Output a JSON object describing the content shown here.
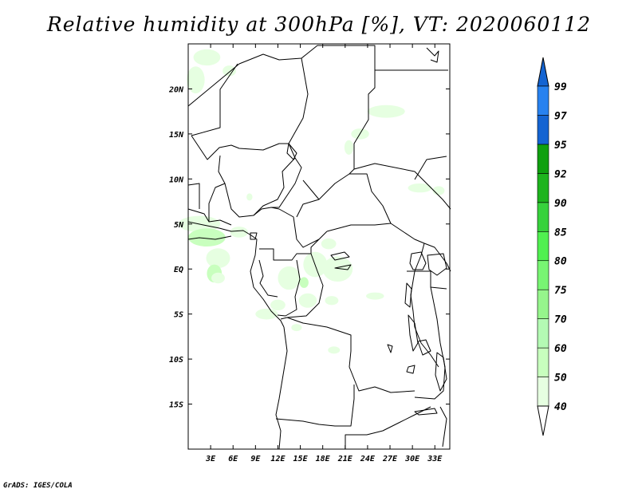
{
  "title": "Relative humidity at 300hPa [%], VT: 2020060112",
  "credit": "GrADS: IGES/COLA",
  "map": {
    "lon_range": [
      0,
      35
    ],
    "lat_range": [
      -20,
      25
    ],
    "lat_ticks": [
      {
        "value": 20,
        "label": "20N"
      },
      {
        "value": 15,
        "label": "15N"
      },
      {
        "value": 10,
        "label": "10N"
      },
      {
        "value": 5,
        "label": "5N"
      },
      {
        "value": 0,
        "label": "EQ"
      },
      {
        "value": -5,
        "label": "5S"
      },
      {
        "value": -10,
        "label": "10S"
      },
      {
        "value": -15,
        "label": "15S"
      }
    ],
    "lon_ticks": [
      {
        "value": 3,
        "label": "3E"
      },
      {
        "value": 6,
        "label": "6E"
      },
      {
        "value": 9,
        "label": "9E"
      },
      {
        "value": 12,
        "label": "12E"
      },
      {
        "value": 15,
        "label": "15E"
      },
      {
        "value": 18,
        "label": "18E"
      },
      {
        "value": 21,
        "label": "21E"
      },
      {
        "value": 24,
        "label": "24E"
      },
      {
        "value": 27,
        "label": "27E"
      },
      {
        "value": 30,
        "label": "30E"
      },
      {
        "value": 33,
        "label": "33E"
      }
    ]
  },
  "colorbar": {
    "levels": [
      "40",
      "50",
      "60",
      "70",
      "75",
      "80",
      "85",
      "90",
      "92",
      "95",
      "97",
      "99"
    ],
    "colors": [
      "#e6ffe1",
      "#c8ffbe",
      "#b4fab4",
      "#96f58c",
      "#78f573",
      "#50f050",
      "#37d23c",
      "#1eb41e",
      "#0fa00f",
      "#1464d2",
      "#2882f0",
      "#50a5f5",
      "#96d2fa"
    ],
    "low_color": "#ffffff",
    "high_color": "#1464d2"
  },
  "humidity_patches": [
    {
      "lon": 2.5,
      "lat": 23.5,
      "rx": 1.8,
      "ry": 0.9,
      "level": 0
    },
    {
      "lon": 1.0,
      "lat": 21.0,
      "rx": 1.2,
      "ry": 1.5,
      "level": 0
    },
    {
      "lon": 5.5,
      "lat": 22.0,
      "rx": 0.9,
      "ry": 0.6,
      "level": 0
    },
    {
      "lon": 26.5,
      "lat": 17.5,
      "rx": 2.5,
      "ry": 0.7,
      "level": 0
    },
    {
      "lon": 23.0,
      "lat": 15.0,
      "rx": 1.2,
      "ry": 0.6,
      "level": 0
    },
    {
      "lon": 21.5,
      "lat": 13.5,
      "rx": 0.6,
      "ry": 0.8,
      "level": 0
    },
    {
      "lon": 31.0,
      "lat": 9.0,
      "rx": 1.6,
      "ry": 0.5,
      "level": 0
    },
    {
      "lon": 33.5,
      "lat": 8.7,
      "rx": 0.8,
      "ry": 0.5,
      "level": 0
    },
    {
      "lon": 1.5,
      "lat": 5.0,
      "rx": 2.8,
      "ry": 0.9,
      "level": 0
    },
    {
      "lon": 2.5,
      "lat": 3.5,
      "rx": 2.5,
      "ry": 1.0,
      "level": 1
    },
    {
      "lon": 4.0,
      "lat": 1.2,
      "rx": 1.6,
      "ry": 1.1,
      "level": 0
    },
    {
      "lon": 3.5,
      "lat": -0.5,
      "rx": 1.0,
      "ry": 1.0,
      "level": 1
    },
    {
      "lon": 4.0,
      "lat": -1.0,
      "rx": 0.9,
      "ry": 0.6,
      "level": 0
    },
    {
      "lon": 6.8,
      "lat": 4.1,
      "rx": 1.2,
      "ry": 0.6,
      "level": 0
    },
    {
      "lon": 13.5,
      "lat": -1.0,
      "rx": 1.5,
      "ry": 1.3,
      "level": 0
    },
    {
      "lon": 15.5,
      "lat": -1.5,
      "rx": 0.6,
      "ry": 0.6,
      "level": 1
    },
    {
      "lon": 17.0,
      "lat": 0.5,
      "rx": 1.6,
      "ry": 1.4,
      "level": 0
    },
    {
      "lon": 20.0,
      "lat": 0.0,
      "rx": 2.0,
      "ry": 1.4,
      "level": 0
    },
    {
      "lon": 18.8,
      "lat": 2.8,
      "rx": 1.0,
      "ry": 0.6,
      "level": 0
    },
    {
      "lon": 16.0,
      "lat": -3.5,
      "rx": 1.2,
      "ry": 0.8,
      "level": 0
    },
    {
      "lon": 12.0,
      "lat": -4.0,
      "rx": 1.0,
      "ry": 0.6,
      "level": 0
    },
    {
      "lon": 10.5,
      "lat": -5.0,
      "rx": 1.5,
      "ry": 0.6,
      "level": 0
    },
    {
      "lon": 19.2,
      "lat": -3.5,
      "rx": 0.9,
      "ry": 0.5,
      "level": 0
    },
    {
      "lon": 25.0,
      "lat": -3.0,
      "rx": 1.2,
      "ry": 0.4,
      "level": 0
    },
    {
      "lon": 14.5,
      "lat": -6.5,
      "rx": 0.7,
      "ry": 0.4,
      "level": 0
    },
    {
      "lon": 19.5,
      "lat": -9.0,
      "rx": 0.8,
      "ry": 0.4,
      "level": 0
    },
    {
      "lon": 8.2,
      "lat": 8.0,
      "rx": 0.4,
      "ry": 0.4,
      "level": 0
    }
  ]
}
